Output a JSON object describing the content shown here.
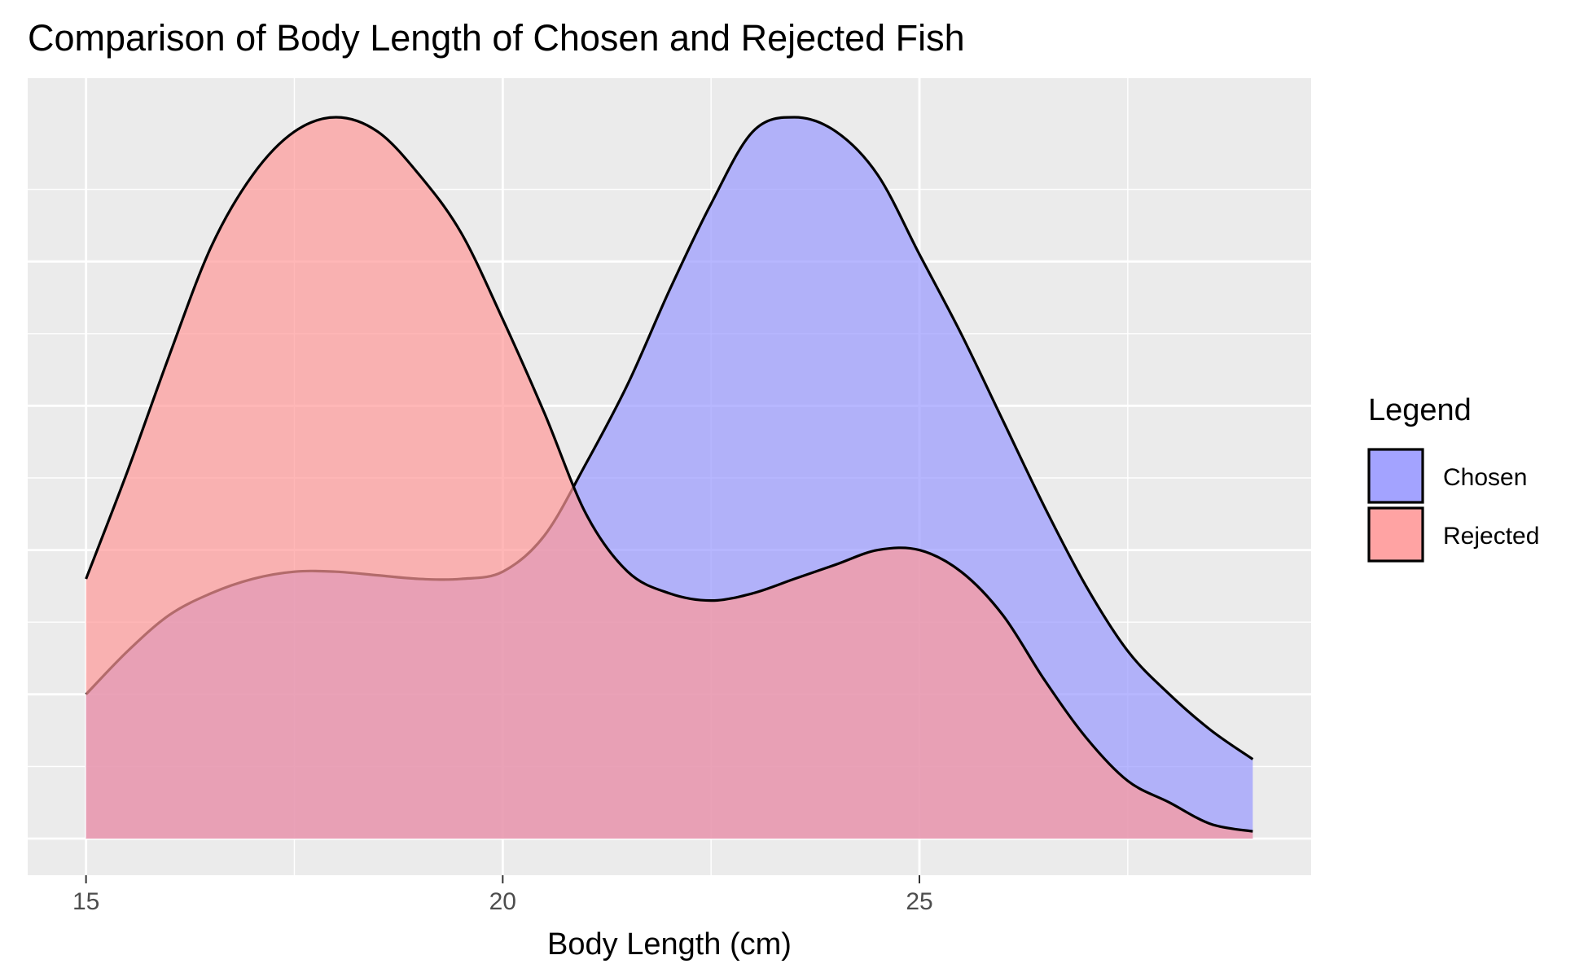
{
  "chart_data": {
    "type": "area",
    "title": "Comparison of Body Length of Chosen and Rejected Fish",
    "xlabel": "Body Length (cm)",
    "ylabel": "",
    "xlim": [
      14.3,
      29.7
    ],
    "ylim": [
      0,
      1
    ],
    "x_ticks": [
      15,
      20,
      25
    ],
    "x_tick_labels": [
      "15",
      "20",
      "25"
    ],
    "y_ticks_major": [
      0,
      0.2,
      0.4,
      0.6,
      0.8
    ],
    "x_minor_ticks": [
      17.5,
      22.5,
      27.5
    ],
    "y_tick_labels_shown": false,
    "grid": true,
    "legend": {
      "title": "Legend",
      "position": "right"
    },
    "x": [
      15.0,
      15.5,
      16.0,
      16.5,
      17.0,
      17.5,
      18.0,
      18.5,
      19.0,
      19.5,
      20.0,
      20.5,
      21.0,
      21.5,
      22.0,
      22.5,
      23.0,
      23.5,
      24.0,
      24.5,
      25.0,
      25.5,
      26.0,
      26.5,
      27.0,
      27.5,
      28.0,
      28.5,
      29.0
    ],
    "series": [
      {
        "name": "Chosen",
        "color": "#9999ff",
        "values": [
          0.2,
          0.26,
          0.31,
          0.34,
          0.36,
          0.37,
          0.37,
          0.365,
          0.36,
          0.36,
          0.37,
          0.42,
          0.52,
          0.63,
          0.76,
          0.88,
          0.98,
          1.0,
          0.98,
          0.92,
          0.81,
          0.7,
          0.58,
          0.46,
          0.35,
          0.26,
          0.2,
          0.15,
          0.11
        ]
      },
      {
        "name": "Rejected",
        "color": "#ff9999",
        "values": [
          0.36,
          0.51,
          0.67,
          0.82,
          0.92,
          0.98,
          1.0,
          0.98,
          0.92,
          0.84,
          0.72,
          0.59,
          0.45,
          0.37,
          0.34,
          0.33,
          0.34,
          0.36,
          0.38,
          0.4,
          0.4,
          0.37,
          0.31,
          0.22,
          0.14,
          0.08,
          0.05,
          0.02,
          0.01
        ]
      }
    ]
  }
}
